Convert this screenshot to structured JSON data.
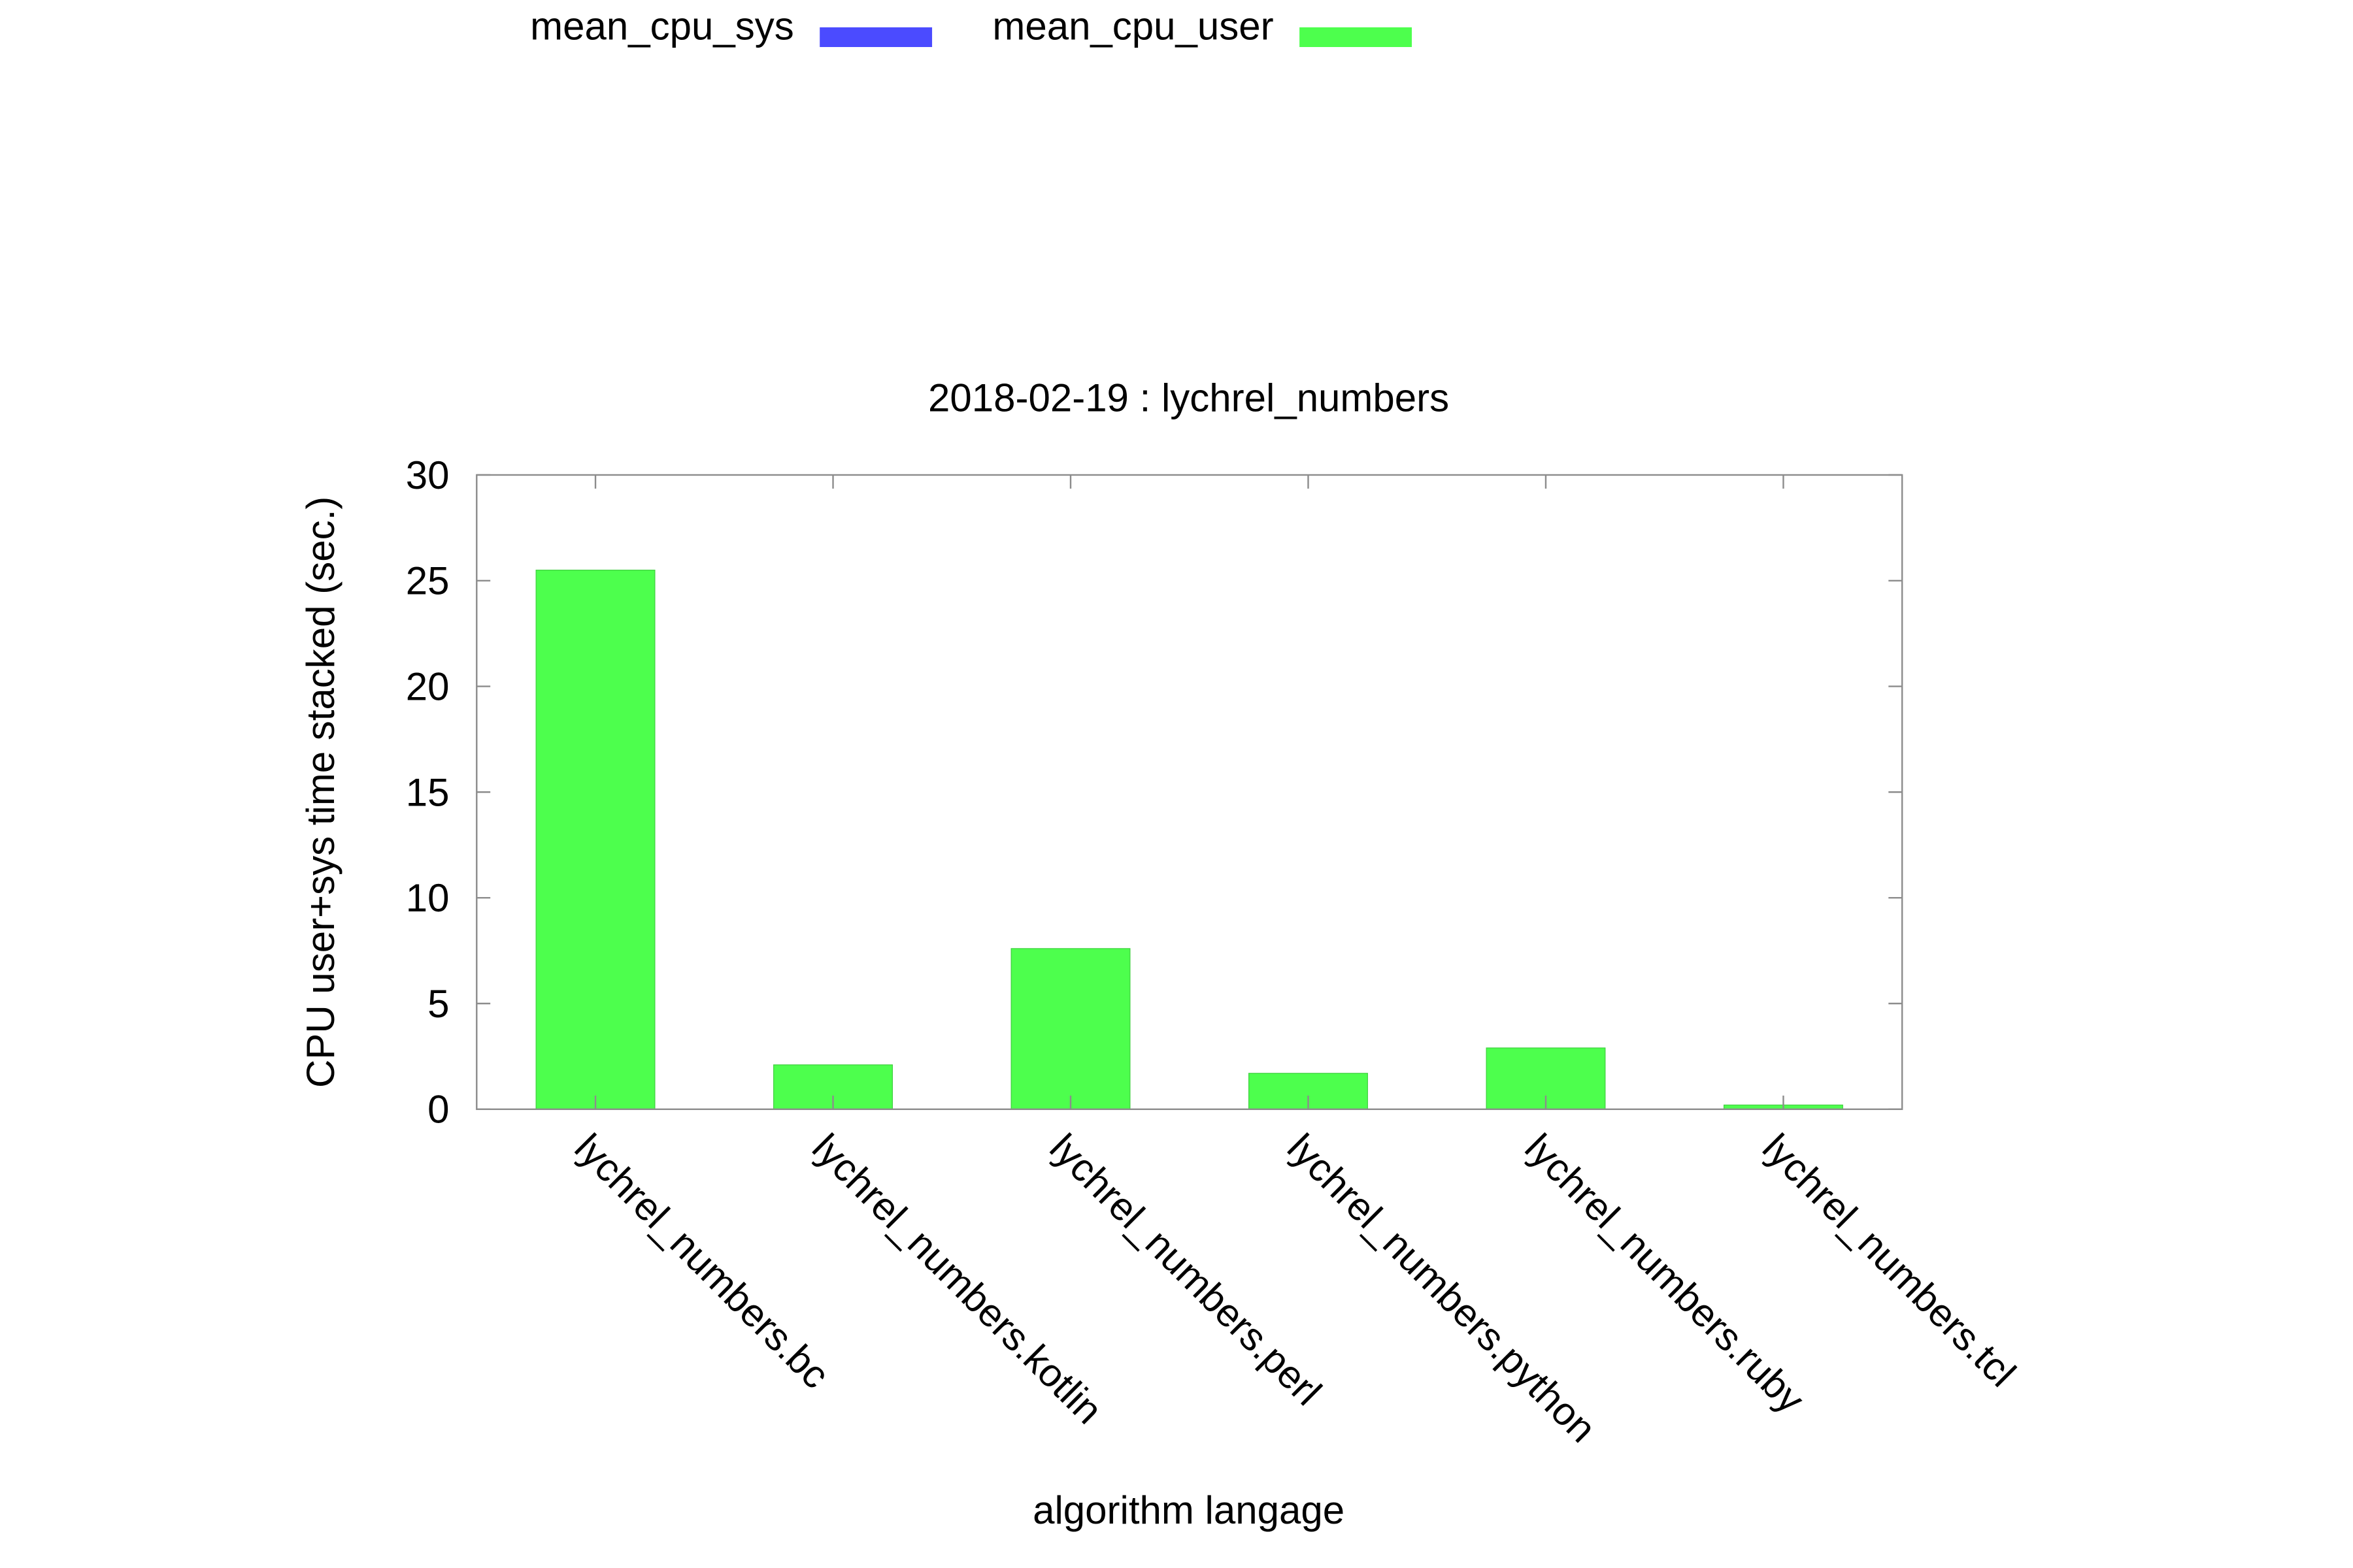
{
  "chart_data": {
    "type": "bar",
    "stacked": true,
    "title": "2018-02-19 : lychrel_numbers",
    "xlabel": "algorithm langage",
    "ylabel": "CPU user+sys time stacked (sec.)",
    "ylim": [
      0,
      30
    ],
    "yticks": [
      "0",
      "5",
      "10",
      "15",
      "20",
      "25",
      "30"
    ],
    "categories": [
      "lychrel_numbers.bc",
      "lychrel_numbers.kotlin",
      "lychrel_numbers.perl",
      "lychrel_numbers.python",
      "lychrel_numbers.ruby",
      "lychrel_numbers.tcl"
    ],
    "series": [
      {
        "name": "mean_cpu_sys",
        "color": "#4b4bff",
        "values": [
          0.0,
          0.0,
          0.0,
          0.0,
          0.0,
          0.0
        ]
      },
      {
        "name": "mean_cpu_user",
        "color": "#4dff4d",
        "values": [
          25.5,
          2.1,
          7.6,
          1.7,
          2.9,
          0.2
        ]
      }
    ],
    "legend": "top-left",
    "grid": false
  }
}
